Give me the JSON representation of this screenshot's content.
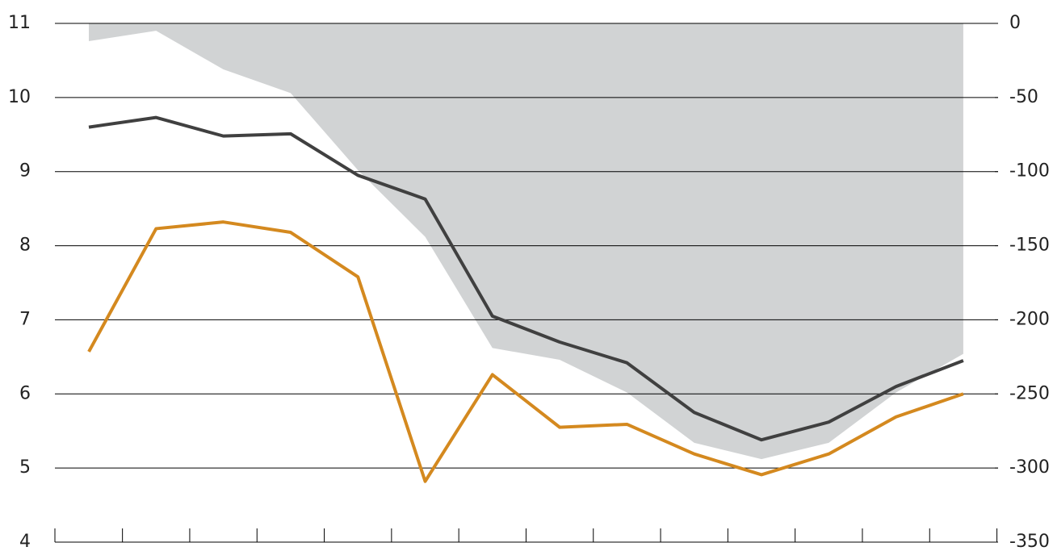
{
  "chart_data": {
    "type": "line",
    "categories": [
      null,
      null,
      null,
      null,
      null,
      null,
      null,
      null,
      null,
      null,
      null,
      null,
      null,
      null
    ],
    "series": [
      {
        "type": "area",
        "axis": "y2",
        "color": "#d1d3d4",
        "values": [
          -12,
          -5,
          -31,
          -47,
          -99,
          -144,
          -219,
          -227,
          -249,
          -283,
          -294,
          -283,
          -249,
          -223
        ]
      },
      {
        "color": "#404040",
        "values": [
          9.6,
          9.73,
          9.48,
          9.51,
          8.95,
          8.63,
          7.05,
          6.7,
          6.42,
          5.75,
          5.38,
          5.62,
          6.1,
          6.45
        ]
      },
      {
        "color": "#d4891f",
        "values": [
          6.57,
          8.23,
          8.32,
          8.18,
          7.58,
          4.82,
          6.26,
          5.55,
          5.59,
          5.19,
          4.91,
          5.19,
          5.69,
          6.0
        ]
      }
    ],
    "ylim": [
      4,
      11
    ],
    "yticks": [
      4,
      5,
      6,
      7,
      8,
      9,
      10,
      11
    ],
    "y2lim": [
      -350,
      0
    ],
    "y2ticks": [
      -350,
      -300,
      -250,
      -200,
      -150,
      -100,
      -50,
      0
    ],
    "grid": true
  }
}
